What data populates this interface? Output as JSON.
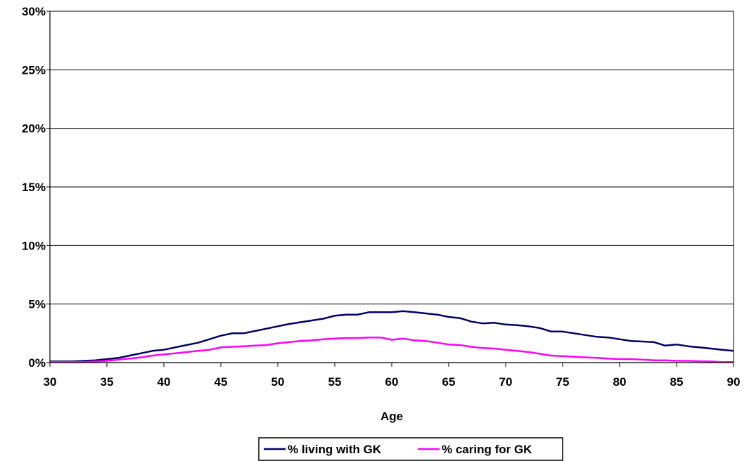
{
  "chart_data": {
    "type": "line",
    "title": "",
    "xlabel": "Age",
    "ylabel": "",
    "xlim": [
      30,
      90
    ],
    "ylim": [
      0,
      30
    ],
    "x_ticks": [
      "30",
      "35",
      "40",
      "45",
      "50",
      "55",
      "60",
      "65",
      "70",
      "75",
      "80",
      "85",
      "90"
    ],
    "y_ticks": [
      "0%",
      "5%",
      "10%",
      "15%",
      "20%",
      "25%",
      "30%"
    ],
    "grid": "horizontal",
    "legend_position": "bottom",
    "series": [
      {
        "name": "% living with GK",
        "color": "#000066",
        "x": [
          30,
          31,
          32,
          33,
          34,
          35,
          36,
          37,
          38,
          39,
          40,
          41,
          42,
          43,
          44,
          45,
          46,
          47,
          48,
          49,
          50,
          51,
          52,
          53,
          54,
          55,
          56,
          57,
          58,
          59,
          60,
          61,
          62,
          63,
          64,
          65,
          66,
          67,
          68,
          69,
          70,
          71,
          72,
          73,
          74,
          75,
          76,
          77,
          78,
          79,
          80,
          81,
          82,
          83,
          84,
          85,
          86,
          87,
          88,
          89,
          90
        ],
        "values": [
          0.1,
          0.1,
          0.1,
          0.15,
          0.2,
          0.3,
          0.4,
          0.6,
          0.8,
          1.0,
          1.1,
          1.3,
          1.5,
          1.7,
          2.0,
          2.3,
          2.5,
          2.5,
          2.7,
          2.9,
          3.1,
          3.3,
          3.45,
          3.6,
          3.75,
          4.0,
          4.1,
          4.1,
          4.3,
          4.3,
          4.3,
          4.4,
          4.3,
          4.2,
          4.1,
          3.9,
          3.8,
          3.5,
          3.35,
          3.4,
          3.25,
          3.2,
          3.1,
          2.95,
          2.65,
          2.65,
          2.5,
          2.35,
          2.2,
          2.15,
          2.0,
          1.85,
          1.8,
          1.75,
          1.45,
          1.55,
          1.4,
          1.3,
          1.2,
          1.1,
          1.0
        ]
      },
      {
        "name": "% caring for GK",
        "color": "#ff00ff",
        "x": [
          30,
          31,
          32,
          33,
          34,
          35,
          36,
          37,
          38,
          39,
          40,
          41,
          42,
          43,
          44,
          45,
          46,
          47,
          48,
          49,
          50,
          51,
          52,
          53,
          54,
          55,
          56,
          57,
          58,
          59,
          60,
          61,
          62,
          63,
          64,
          65,
          66,
          67,
          68,
          69,
          70,
          71,
          72,
          73,
          74,
          75,
          76,
          77,
          78,
          79,
          80,
          81,
          82,
          83,
          84,
          85,
          86,
          87,
          88,
          89,
          90
        ],
        "values": [
          0.05,
          0.05,
          0.05,
          0.05,
          0.1,
          0.15,
          0.25,
          0.35,
          0.45,
          0.6,
          0.7,
          0.8,
          0.9,
          1.0,
          1.1,
          1.3,
          1.35,
          1.4,
          1.45,
          1.5,
          1.65,
          1.75,
          1.85,
          1.9,
          2.0,
          2.05,
          2.1,
          2.1,
          2.15,
          2.15,
          1.95,
          2.05,
          1.9,
          1.85,
          1.7,
          1.55,
          1.5,
          1.35,
          1.25,
          1.2,
          1.1,
          1.0,
          0.9,
          0.75,
          0.6,
          0.55,
          0.5,
          0.45,
          0.4,
          0.35,
          0.3,
          0.3,
          0.25,
          0.2,
          0.2,
          0.15,
          0.15,
          0.12,
          0.1,
          0.05,
          0.05
        ]
      }
    ]
  }
}
